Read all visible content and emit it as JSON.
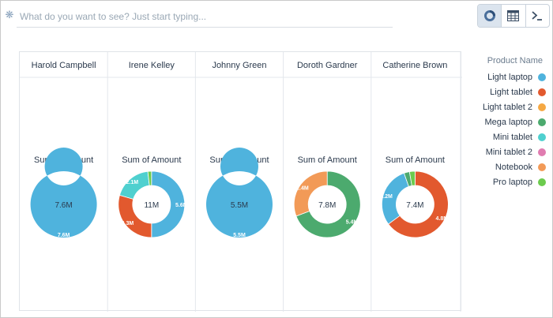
{
  "search": {
    "placeholder": "What do you want to see? Just start typing..."
  },
  "toolbar": {
    "views": [
      {
        "icon": "donut-chart-icon",
        "active": true
      },
      {
        "icon": "table-grid-icon",
        "active": false
      },
      {
        "icon": "terminal-icon",
        "active": false
      }
    ]
  },
  "legend": {
    "title": "Product Name",
    "items": [
      {
        "label": "Light laptop",
        "color": "#4fb3dd"
      },
      {
        "label": "Light tablet",
        "color": "#e2592e"
      },
      {
        "label": "Light tablet 2",
        "color": "#f5a843"
      },
      {
        "label": "Mega laptop",
        "color": "#4caa6e"
      },
      {
        "label": "Mini tablet",
        "color": "#4fd0cf"
      },
      {
        "label": "Mini tablet 2",
        "color": "#e07cb0"
      },
      {
        "label": "Notebook",
        "color": "#f29a57"
      },
      {
        "label": "Pro laptop",
        "color": "#6ccb4e"
      }
    ]
  },
  "chart_data": {
    "type": "pie",
    "variant": "donut",
    "measure": "Sum of Amount",
    "grouping": "Product Name",
    "panels": [
      {
        "owner": "Harold Campbell",
        "total_label": "7.6M",
        "slices": [
          {
            "product": "Light laptop",
            "value": 7.6,
            "label": "7.6M"
          }
        ]
      },
      {
        "owner": "Irene Kelley",
        "total_label": "11M",
        "slices": [
          {
            "product": "Light laptop",
            "value": 5.6,
            "label": "5.6M"
          },
          {
            "product": "Light tablet",
            "value": 3.3,
            "label": "3.3M"
          },
          {
            "product": "Mini tablet",
            "value": 2.1,
            "label": "2.1M"
          },
          {
            "product": "Pro laptop",
            "value": 0.2,
            "label": ""
          }
        ]
      },
      {
        "owner": "Johnny Green",
        "total_label": "5.5M",
        "slices": [
          {
            "product": "Light laptop",
            "value": 5.5,
            "label": "5.5M"
          }
        ]
      },
      {
        "owner": "Doroth Gardner",
        "total_label": "7.8M",
        "slices": [
          {
            "product": "Mega laptop",
            "value": 5.4,
            "label": "5.4M"
          },
          {
            "product": "Notebook",
            "value": 2.4,
            "label": "2.4M"
          }
        ]
      },
      {
        "owner": "Catherine Brown",
        "total_label": "7.4M",
        "slices": [
          {
            "product": "Light tablet",
            "value": 4.8,
            "label": "4.8M"
          },
          {
            "product": "Light laptop",
            "value": 2.2,
            "label": "2.2M"
          },
          {
            "product": "Mega laptop",
            "value": 0.2,
            "label": ""
          },
          {
            "product": "Pro laptop",
            "value": 0.2,
            "label": ""
          }
        ]
      }
    ]
  }
}
